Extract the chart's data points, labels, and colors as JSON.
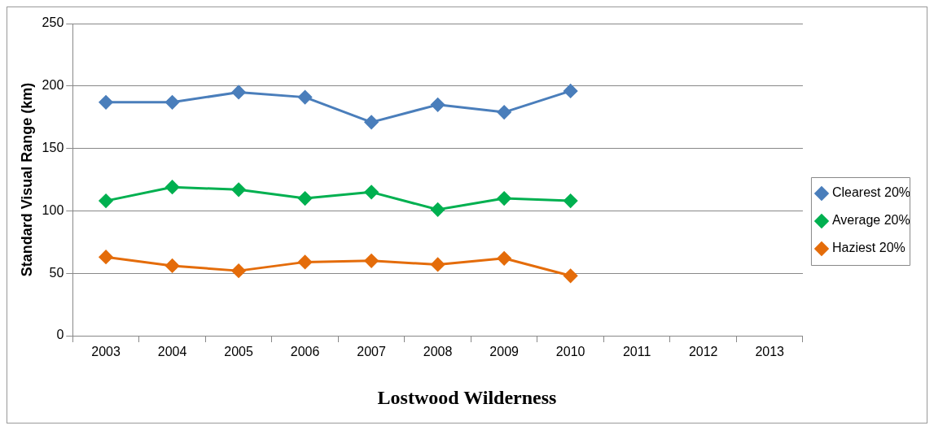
{
  "chart_data": {
    "type": "line",
    "title": "Lostwood Wilderness",
    "ylabel": "Standard Visual Range (km)",
    "categories": [
      "2003",
      "2004",
      "2005",
      "2006",
      "2007",
      "2008",
      "2009",
      "2010",
      "2011",
      "2012",
      "2013"
    ],
    "series": [
      {
        "name": "Clearest 20%",
        "color": "#4a7ebb",
        "values": [
          187,
          187,
          195,
          191,
          171,
          185,
          179,
          196,
          null,
          null,
          null
        ]
      },
      {
        "name": "Average 20%",
        "color": "#00b050",
        "values": [
          108,
          119,
          117,
          110,
          115,
          101,
          110,
          108,
          null,
          null,
          null
        ]
      },
      {
        "name": "Haziest 20%",
        "color": "#e46c0a",
        "values": [
          63,
          56,
          52,
          59,
          60,
          57,
          62,
          48,
          null,
          null,
          null
        ]
      }
    ],
    "ylim": [
      0,
      250
    ],
    "yticks": [
      0,
      50,
      100,
      150,
      200,
      250
    ],
    "grid": "y",
    "legend": "right",
    "marker": "diamond",
    "line_style": "solid"
  }
}
